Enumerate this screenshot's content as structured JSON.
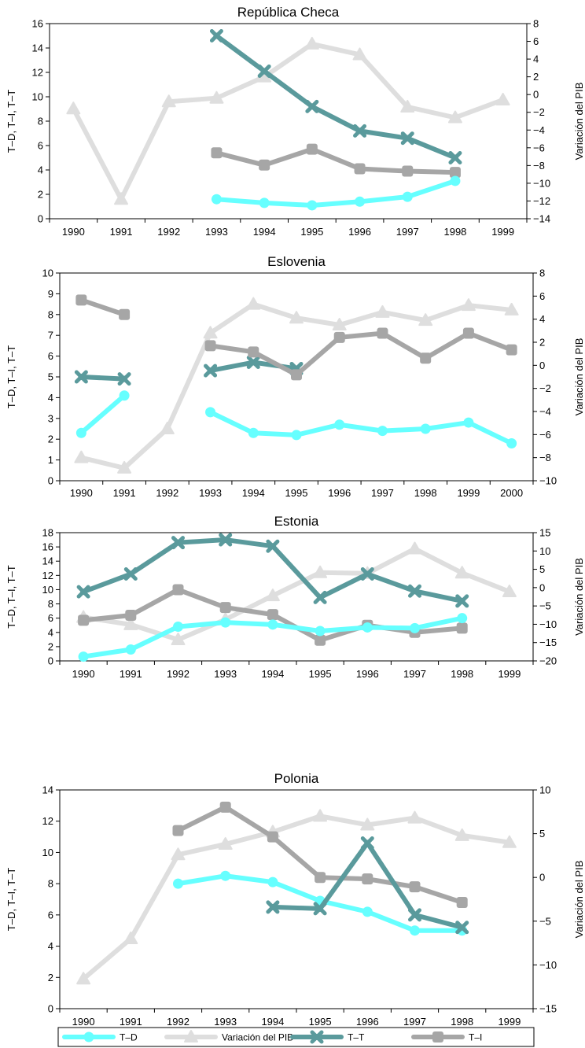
{
  "colors": {
    "T-D": "#66ffff",
    "Variación del PIB": "#dedede",
    "T-T": "#5a9a9c",
    "T-I": "#a6a6a6"
  },
  "legend": [
    "T–D",
    "Variación del PIB",
    "T–T",
    "T–I"
  ],
  "chart_data": [
    {
      "type": "line",
      "title": "República Checa",
      "ylabel": "T–D, T–I, T–T",
      "y2label": "Variación del PIB",
      "categories": [
        "1990",
        "1991",
        "1992",
        "1993",
        "1994",
        "1995",
        "1996",
        "1997",
        "1998",
        "1999"
      ],
      "ylim": [
        0,
        16
      ],
      "yticks": [
        0,
        2,
        4,
        6,
        8,
        10,
        12,
        14,
        16
      ],
      "y2lim": [
        -14,
        8
      ],
      "y2ticks": [
        -14,
        -12,
        -10,
        -8,
        -6,
        -4,
        -2,
        0,
        2,
        4,
        6,
        8
      ],
      "series": [
        {
          "name": "Variación del PIB",
          "axis": "right",
          "marker": "triangle",
          "values": [
            -1.6,
            -11.8,
            -0.8,
            -0.4,
            2,
            5.7,
            4.5,
            -1.4,
            -2.6,
            -0.6
          ]
        },
        {
          "name": "T–T",
          "axis": "left",
          "marker": "cross",
          "values": [
            null,
            null,
            null,
            15,
            12.1,
            9.2,
            7.2,
            6.6,
            5,
            null
          ]
        },
        {
          "name": "T–I",
          "axis": "left",
          "marker": "square",
          "values": [
            null,
            null,
            null,
            5.4,
            4.4,
            5.7,
            4.1,
            3.9,
            3.8,
            null
          ]
        },
        {
          "name": "T–D",
          "axis": "left",
          "marker": "circle",
          "values": [
            null,
            null,
            null,
            1.6,
            1.3,
            1.1,
            1.4,
            1.8,
            3.1,
            null
          ]
        }
      ]
    },
    {
      "type": "line",
      "title": "Eslovenia",
      "ylabel": "T–D, T–I, T–T",
      "y2label": "Variación del PIB",
      "categories": [
        "1990",
        "1991",
        "1992",
        "1993",
        "1994",
        "1995",
        "1996",
        "1997",
        "1998",
        "1999",
        "2000"
      ],
      "ylim": [
        0,
        10
      ],
      "yticks": [
        0,
        1,
        2,
        3,
        4,
        5,
        6,
        7,
        8,
        9,
        10
      ],
      "y2lim": [
        -10,
        8
      ],
      "y2ticks": [
        -10,
        -8,
        -6,
        -4,
        -2,
        0,
        2,
        4,
        6,
        8
      ],
      "series": [
        {
          "name": "Variación del PIB",
          "axis": "right",
          "marker": "triangle",
          "values": [
            -8,
            -8.9,
            -5.5,
            2.8,
            5.3,
            4.1,
            3.5,
            4.6,
            3.9,
            5.2,
            4.8
          ]
        },
        {
          "name": "T–T",
          "axis": "left",
          "marker": "cross",
          "values": [
            5,
            4.9,
            null,
            5.3,
            5.7,
            5.4,
            null,
            null,
            null,
            null,
            null
          ]
        },
        {
          "name": "T–I",
          "axis": "left",
          "marker": "square",
          "values": [
            8.7,
            8,
            null,
            6.5,
            6.2,
            5.1,
            6.9,
            7.1,
            5.9,
            7.1,
            6.3
          ]
        },
        {
          "name": "T–D",
          "axis": "left",
          "marker": "circle",
          "values": [
            2.3,
            4.1,
            null,
            3.3,
            2.3,
            2.2,
            2.7,
            2.4,
            2.5,
            2.8,
            1.8
          ]
        }
      ]
    },
    {
      "type": "line",
      "title": "Estonia",
      "ylabel": "T–D, T–I, T–T",
      "y2label": "Variación del PIB",
      "categories": [
        "1990",
        "1991",
        "1992",
        "1993",
        "1994",
        "1995",
        "1996",
        "1997",
        "1998",
        "1999"
      ],
      "ylim": [
        0,
        18
      ],
      "yticks": [
        0,
        2,
        4,
        6,
        8,
        10,
        12,
        14,
        16,
        18
      ],
      "y2lim": [
        -20,
        15
      ],
      "y2ticks": [
        -20,
        -15,
        -10,
        -5,
        0,
        5,
        10,
        15
      ],
      "series": [
        {
          "name": "Variación del PIB",
          "axis": "right",
          "marker": "triangle",
          "values": [
            -8.1,
            -10.1,
            -14.2,
            -8.7,
            -2.2,
            4.1,
            3.9,
            10.6,
            4,
            -1.1
          ]
        },
        {
          "name": "T–T",
          "axis": "left",
          "marker": "cross",
          "values": [
            9.7,
            12.2,
            16.6,
            17,
            16.1,
            8.9,
            12.2,
            9.8,
            8.4,
            null
          ]
        },
        {
          "name": "T–I",
          "axis": "left",
          "marker": "square",
          "values": [
            5.7,
            6.4,
            10,
            7.5,
            6.5,
            2.9,
            5,
            4,
            4.6,
            null
          ]
        },
        {
          "name": "T–D",
          "axis": "left",
          "marker": "circle",
          "values": [
            0.6,
            1.6,
            4.8,
            5.4,
            5.1,
            4.2,
            4.7,
            4.6,
            6,
            null
          ]
        }
      ]
    },
    {
      "type": "line",
      "title": "Polonia",
      "ylabel": "T–D, T–I, T–T",
      "y2label": "Variación del PIB",
      "categories": [
        "1990",
        "1991",
        "1992",
        "1993",
        "1994",
        "1995",
        "1996",
        "1997",
        "1998",
        "1999"
      ],
      "ylim": [
        0,
        14
      ],
      "yticks": [
        0,
        2,
        4,
        6,
        8,
        10,
        12,
        14
      ],
      "y2lim": [
        -15,
        10
      ],
      "y2ticks": [
        -15,
        -10,
        -5,
        0,
        5,
        10
      ],
      "series": [
        {
          "name": "Variación del PIB",
          "axis": "right",
          "marker": "triangle",
          "values": [
            -11.6,
            -7,
            2.6,
            3.8,
            5.2,
            7,
            6,
            6.8,
            4.8,
            4
          ]
        },
        {
          "name": "T–I",
          "axis": "left",
          "marker": "square",
          "values": [
            null,
            null,
            11.4,
            12.9,
            11,
            8.4,
            8.3,
            7.8,
            6.8,
            null
          ]
        },
        {
          "name": "T–D",
          "axis": "left",
          "marker": "circle",
          "values": [
            null,
            null,
            8,
            8.5,
            8.1,
            6.9,
            6.2,
            5,
            5,
            null
          ]
        },
        {
          "name": "T–T",
          "axis": "left",
          "marker": "cross",
          "values": [
            null,
            null,
            null,
            null,
            6.5,
            6.4,
            10.6,
            6,
            5.2,
            null
          ]
        }
      ]
    }
  ]
}
